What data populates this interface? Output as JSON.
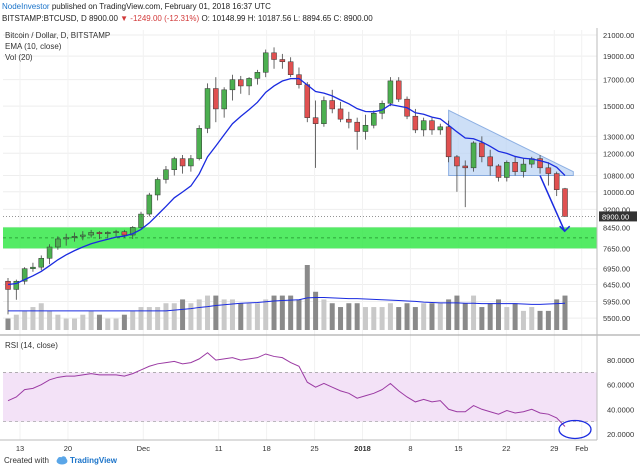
{
  "header": {
    "author": "NodeInvestor",
    "published_text": "published on TradingView.com, February 01, 2018 16:37 UTC",
    "symbol_line": "BITSTAMP:BTCUSD, D",
    "price": "8900.00",
    "change": "▼ -1249.00 (-12.31%)",
    "ohlc": "O: 10148.99 H: 10187.56 L: 8894.65 C: 8900.00"
  },
  "legend": {
    "title": "Bitcoin / Dollar, D, BITSTAMP",
    "ema": "EMA (10, close)",
    "vol": "Vol (20)"
  },
  "rsi": {
    "label": "RSI (14, close)"
  },
  "footer": {
    "created_with": "Created with",
    "brand": "TradingView"
  },
  "colors": {
    "up": "#4caf50",
    "down": "#e05050",
    "ema": "#1a2be0",
    "rsi": "#9b3aa3",
    "rsi_band": "#f3e2f7",
    "support_zone": "#36e84a",
    "triangle": "#b8d2f4",
    "arrow": "#1a2be0",
    "volume": "#7a7a7a"
  },
  "chart_data": [
    {
      "type": "candlestick",
      "title": "Bitcoin / Dollar, D, BITSTAMP",
      "x_tick_labels": [
        "13",
        "20",
        "Dec",
        "11",
        "18",
        "25",
        "2018",
        "8",
        "15",
        "22",
        "29",
        "Feb"
      ],
      "y_tick_labels": [
        "21000.00",
        "19000.00",
        "17000.00",
        "15000.00",
        "13000.00",
        "12000.00",
        "10800.00",
        "10000.00",
        "9200.00",
        "8450.00",
        "7650.00",
        "6950.00",
        "6450.00",
        "5950.00",
        "5500.00"
      ],
      "ylim": [
        5200,
        21500
      ],
      "y_scale": "log",
      "last_price_label": "8900.00",
      "support_zone": [
        7650,
        8450
      ],
      "candles": [
        [
          6550,
          6650,
          5600,
          6300
        ],
        [
          6300,
          6600,
          6000,
          6550
        ],
        [
          6550,
          7000,
          6450,
          6950
        ],
        [
          6950,
          7150,
          6850,
          7000
        ],
        [
          7000,
          7400,
          6900,
          7300
        ],
        [
          7300,
          7800,
          7100,
          7700
        ],
        [
          7700,
          8100,
          7600,
          8000
        ],
        [
          8000,
          8200,
          7750,
          8050
        ],
        [
          8050,
          8250,
          7900,
          8100
        ],
        [
          8100,
          8300,
          7950,
          8150
        ],
        [
          8150,
          8350,
          8050,
          8250
        ],
        [
          8250,
          8300,
          8000,
          8200
        ],
        [
          8200,
          8300,
          8050,
          8250
        ],
        [
          8250,
          8350,
          8100,
          8280
        ],
        [
          8280,
          8350,
          8050,
          8150
        ],
        [
          8150,
          8500,
          8000,
          8450
        ],
        [
          8450,
          9100,
          8400,
          9000
        ],
        [
          9000,
          9950,
          8900,
          9850
        ],
        [
          9850,
          10700,
          9600,
          10600
        ],
        [
          10600,
          11300,
          10400,
          11100
        ],
        [
          11100,
          11800,
          10800,
          11700
        ],
        [
          11700,
          11900,
          10900,
          11300
        ],
        [
          11300,
          11900,
          11000,
          11700
        ],
        [
          11700,
          13700,
          11600,
          13500
        ],
        [
          13500,
          16700,
          13200,
          16300
        ],
        [
          16300,
          17200,
          13900,
          14800
        ],
        [
          14800,
          16400,
          14200,
          16200
        ],
        [
          16200,
          17400,
          15400,
          17000
        ],
        [
          17000,
          17300,
          15900,
          16500
        ],
        [
          16500,
          17200,
          15800,
          17100
        ],
        [
          17100,
          17800,
          16600,
          17600
        ],
        [
          17600,
          19600,
          17200,
          19300
        ],
        [
          19300,
          19800,
          17900,
          18700
        ],
        [
          18700,
          19200,
          17900,
          18500
        ],
        [
          18500,
          18900,
          17200,
          17400
        ],
        [
          17400,
          18000,
          16300,
          16600
        ],
        [
          16600,
          16800,
          13900,
          14200
        ],
        [
          14200,
          15400,
          11200,
          13800
        ],
        [
          13800,
          15700,
          13600,
          15400
        ],
        [
          15400,
          16200,
          14500,
          14800
        ],
        [
          14800,
          15300,
          13900,
          14100
        ],
        [
          14100,
          14600,
          13500,
          13900
        ],
        [
          13900,
          14200,
          12200,
          13300
        ],
        [
          13300,
          14400,
          12800,
          13700
        ],
        [
          13700,
          14700,
          13500,
          14500
        ],
        [
          14500,
          15400,
          14100,
          15200
        ],
        [
          15200,
          17200,
          15000,
          16900
        ],
        [
          16900,
          17200,
          15300,
          15500
        ],
        [
          15500,
          15700,
          14100,
          14300
        ],
        [
          14300,
          14800,
          13200,
          13400
        ],
        [
          13400,
          14200,
          13000,
          14000
        ],
        [
          14000,
          14200,
          13100,
          13400
        ],
        [
          13400,
          13800,
          13100,
          13600
        ],
        [
          13600,
          14000,
          11500,
          11800
        ],
        [
          11800,
          11900,
          10000,
          11300
        ],
        [
          11300,
          11600,
          9300,
          11200
        ],
        [
          11200,
          12700,
          11000,
          12600
        ],
        [
          12600,
          13000,
          11500,
          11800
        ],
        [
          11800,
          12200,
          10800,
          11300
        ],
        [
          11300,
          11400,
          10500,
          10700
        ],
        [
          10700,
          11600,
          10500,
          11500
        ],
        [
          11500,
          11800,
          10800,
          11000
        ],
        [
          11000,
          11700,
          10700,
          11400
        ],
        [
          11400,
          11800,
          11200,
          11700
        ],
        [
          11700,
          11900,
          10900,
          11200
        ],
        [
          11200,
          11500,
          10300,
          10900
        ],
        [
          10900,
          11000,
          9800,
          10100
        ],
        [
          10148,
          10187,
          8894,
          8900
        ]
      ],
      "ema_10": [
        6450,
        6480,
        6600,
        6720,
        6860,
        7050,
        7250,
        7420,
        7570,
        7700,
        7820,
        7910,
        7990,
        8070,
        8110,
        8200,
        8370,
        8630,
        8970,
        9330,
        9720,
        9990,
        10280,
        10880,
        11800,
        12420,
        13100,
        13800,
        14290,
        14750,
        15270,
        16010,
        16500,
        16890,
        17080,
        17090,
        16570,
        16070,
        15950,
        15740,
        15440,
        15160,
        14820,
        14620,
        14600,
        14720,
        15110,
        15000,
        14880,
        14530,
        14430,
        14240,
        14120,
        13700,
        13280,
        12900,
        12850,
        12660,
        12400,
        12110,
        11990,
        11820,
        11720,
        11680,
        11590,
        11460,
        11230,
        10800
      ],
      "volume": [
        3,
        4,
        5,
        6,
        7,
        5,
        4,
        3,
        3,
        4,
        5,
        4,
        3,
        3,
        4,
        5,
        6,
        6,
        6,
        7,
        7,
        8,
        7,
        8,
        9,
        9,
        8,
        8,
        7,
        7,
        7,
        8,
        9,
        9,
        9,
        8,
        17,
        10,
        8,
        7,
        6,
        7,
        7,
        6,
        6,
        6,
        7,
        6,
        7,
        6,
        7,
        7,
        7,
        8,
        9,
        7,
        9,
        6,
        7,
        8,
        6,
        7,
        5,
        6,
        5,
        5,
        8,
        9
      ],
      "volume_ma_20": [
        5,
        5,
        5,
        5,
        5,
        5,
        5,
        5,
        5,
        5,
        5,
        5,
        5,
        5,
        5,
        5,
        5,
        5,
        5,
        5,
        5.2,
        5.4,
        5.6,
        5.9,
        6.1,
        6.4,
        6.6,
        6.8,
        7,
        7.1,
        7.2,
        7.4,
        7.6,
        7.7,
        7.8,
        7.9,
        8.4,
        8.5,
        8.5,
        8.4,
        8.3,
        8.2,
        8.2,
        8.1,
        8,
        7.9,
        7.8,
        7.7,
        7.6,
        7.5,
        7.3,
        7.2,
        7.1,
        7.1,
        7.1,
        7,
        7,
        6.9,
        6.9,
        6.9,
        6.9,
        6.9,
        6.8,
        6.7,
        6.7,
        6.8,
        6.9,
        7
      ],
      "triangle_resistance": [
        [
          53,
          14700
        ],
        [
          68,
          11000
        ]
      ],
      "triangle_support": [
        [
          53,
          10800
        ],
        [
          68,
          10800
        ]
      ],
      "projection_arrow": [
        [
          64,
          10800
        ],
        [
          66,
          8300
        ]
      ]
    },
    {
      "type": "line",
      "title": "RSI (14, close)",
      "y_tick_labels": [
        "80.0000",
        "60.0000",
        "40.0000",
        "20.0000"
      ],
      "ylim": [
        15,
        98
      ],
      "band": [
        30,
        70
      ],
      "values": [
        47,
        50,
        56,
        57,
        60,
        64,
        66,
        67,
        67,
        68,
        69,
        68,
        68,
        68,
        67,
        69,
        72,
        75,
        77,
        78,
        79,
        77,
        78,
        81,
        86,
        80,
        81,
        82,
        80,
        81,
        82,
        85,
        83,
        82,
        78,
        75,
        62,
        58,
        61,
        58,
        55,
        53,
        49,
        51,
        53,
        56,
        61,
        55,
        50,
        46,
        48,
        46,
        47,
        40,
        38,
        38,
        43,
        40,
        38,
        36,
        39,
        37,
        38,
        40,
        37,
        36,
        33,
        26
      ]
    }
  ]
}
